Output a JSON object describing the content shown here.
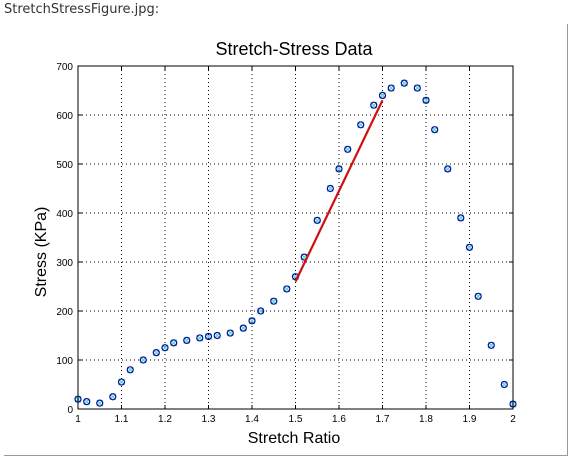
{
  "file": {
    "name": "StretchStressFigure.jpg:"
  },
  "colors": {
    "scatter": "#5fd8e0",
    "markers": "#0a0a8c",
    "fit": "#d01010",
    "axis": "#000000"
  },
  "chart_data": {
    "type": "scatter",
    "title": "Stretch-Stress Data",
    "xlabel": "Stretch Ratio",
    "ylabel": "Stress (KPa)",
    "xlim": [
      1,
      2
    ],
    "ylim": [
      0,
      700
    ],
    "xticks": [
      "1",
      "1.1",
      "1.2",
      "1.3",
      "1.4",
      "1.5",
      "1.6",
      "1.7",
      "1.8",
      "1.9",
      "2"
    ],
    "yticks": [
      "0",
      "100",
      "200",
      "300",
      "400",
      "500",
      "600",
      "700"
    ],
    "grid": true,
    "series": [
      {
        "style": "cyan x markers (raw data)",
        "x": [
          1.0,
          1.02,
          1.05,
          1.08,
          1.1,
          1.12,
          1.15,
          1.18,
          1.2,
          1.22,
          1.25,
          1.28,
          1.3,
          1.32,
          1.35,
          1.38,
          1.4,
          1.42,
          1.45,
          1.48,
          1.5,
          1.52,
          1.55,
          1.58,
          1.6,
          1.62,
          1.65,
          1.68,
          1.7,
          1.72,
          1.75,
          1.78,
          1.8,
          1.82,
          1.85,
          1.88,
          1.9,
          1.92,
          1.95,
          1.98,
          2.0
        ],
        "y": [
          20,
          15,
          12,
          25,
          55,
          80,
          100,
          115,
          125,
          135,
          140,
          145,
          148,
          150,
          155,
          165,
          180,
          200,
          220,
          245,
          270,
          310,
          385,
          450,
          490,
          530,
          580,
          620,
          640,
          655,
          665,
          655,
          630,
          570,
          490,
          390,
          330,
          230,
          130,
          50,
          10
        ]
      },
      {
        "style": "blue circle markers (averaged data)",
        "x": [
          1.0,
          1.02,
          1.05,
          1.08,
          1.1,
          1.12,
          1.15,
          1.18,
          1.2,
          1.22,
          1.25,
          1.28,
          1.3,
          1.32,
          1.35,
          1.38,
          1.4,
          1.42,
          1.45,
          1.48,
          1.5,
          1.52,
          1.55,
          1.58,
          1.6,
          1.62,
          1.65,
          1.68,
          1.7,
          1.72,
          1.75,
          1.78,
          1.8,
          1.82,
          1.85,
          1.88,
          1.9,
          1.92,
          1.95,
          1.98,
          2.0
        ],
        "y": [
          20,
          15,
          12,
          25,
          55,
          80,
          100,
          115,
          125,
          135,
          140,
          145,
          148,
          150,
          155,
          165,
          180,
          200,
          220,
          245,
          270,
          310,
          385,
          450,
          490,
          530,
          580,
          620,
          640,
          655,
          665,
          655,
          630,
          570,
          490,
          390,
          330,
          230,
          130,
          50,
          10
        ]
      },
      {
        "style": "red line (linear fit)",
        "x": [
          1.5,
          1.7
        ],
        "y": [
          260,
          630
        ]
      }
    ]
  }
}
